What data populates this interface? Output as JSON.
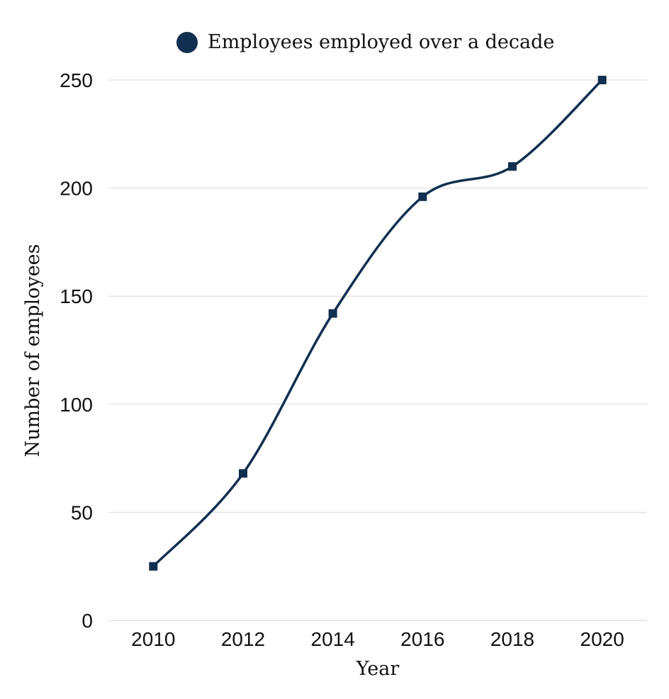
{
  "chart_data": {
    "type": "line",
    "x": [
      2010,
      2012,
      2014,
      2016,
      2018,
      2020
    ],
    "x_tick_labels": [
      "2010",
      "2012",
      "2014",
      "2016",
      "2018",
      "2020"
    ],
    "series": [
      {
        "name": "Employees employed over a decade",
        "values": [
          25,
          68,
          142,
          196,
          210,
          250
        ]
      }
    ],
    "xlabel": "Year",
    "ylabel": "Number of employees",
    "ylim": [
      0,
      250
    ],
    "y_ticks": [
      0,
      50,
      100,
      150,
      200,
      250
    ],
    "y_tick_labels": [
      "0",
      "50",
      "100",
      "150",
      "200",
      "250"
    ],
    "grid": true,
    "smooth": true,
    "marker": "square",
    "legend_position": "top-center",
    "colors": {
      "series": "#11304f",
      "grid": "#d9d9d9"
    }
  }
}
